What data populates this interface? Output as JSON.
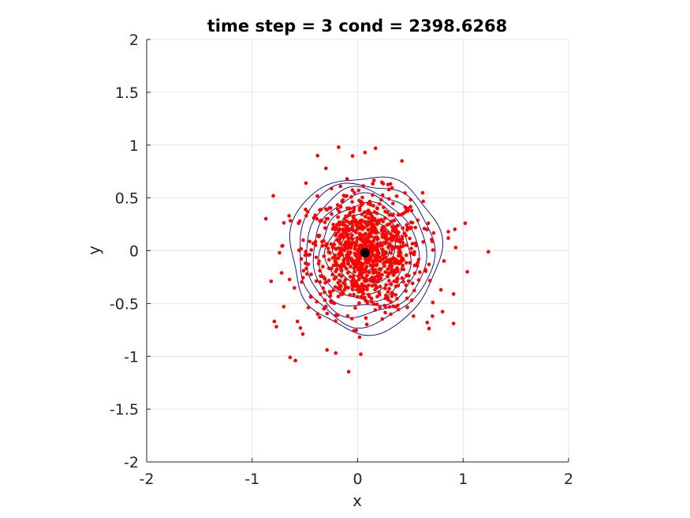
{
  "chart_data": {
    "type": "scatter",
    "title": "time step = 3 cond = 2398.6268",
    "xlabel": "x",
    "ylabel": "y",
    "xlim": [
      -2,
      2
    ],
    "ylim": [
      -2,
      2
    ],
    "grid": true,
    "xticks": [
      -2,
      -1,
      0,
      1,
      2
    ],
    "yticks": [
      -2,
      -1.5,
      -1,
      -0.5,
      0,
      0.5,
      1,
      1.5,
      2
    ],
    "xtick_labels": [
      "-2",
      "-1",
      "0",
      "1",
      "2"
    ],
    "ytick_labels": [
      "-2",
      "-1.5",
      "-1",
      "-0.5",
      "0",
      "0.5",
      "1",
      "1.5",
      "2"
    ],
    "colors": {
      "points": "#ff0000",
      "contour": "#00008b",
      "density_fill": "#f5deb3",
      "center": "#000000",
      "grid": "#e6e6e6",
      "axes": "#262626"
    },
    "mean": {
      "x": 0.07,
      "y": -0.02
    },
    "contour_levels": [
      {
        "rx": 0.71,
        "ry": 0.74
      },
      {
        "rx": 0.64,
        "ry": 0.67
      },
      {
        "rx": 0.57,
        "ry": 0.6
      },
      {
        "rx": 0.5,
        "ry": 0.53
      },
      {
        "rx": 0.43,
        "ry": 0.46
      },
      {
        "rx": 0.36,
        "ry": 0.38
      },
      {
        "rx": 0.29,
        "ry": 0.31
      },
      {
        "rx": 0.22,
        "ry": 0.24
      },
      {
        "rx": 0.15,
        "ry": 0.17
      }
    ],
    "sample_count": 900,
    "outliers": [
      [
        1.24,
        -0.01
      ],
      [
        1.04,
        -0.2
      ],
      [
        1.02,
        0.26
      ],
      [
        0.91,
        -0.69
      ],
      [
        0.93,
        0.03
      ],
      [
        0.86,
        0.18
      ],
      [
        0.91,
        -0.41
      ],
      [
        -0.8,
        0.52
      ],
      [
        -0.82,
        -0.29
      ],
      [
        -0.74,
        -0.02
      ],
      [
        -0.79,
        -0.67
      ],
      [
        -0.77,
        -0.72
      ],
      [
        -0.64,
        -1.01
      ],
      [
        -0.59,
        -1.04
      ],
      [
        -0.29,
        -0.94
      ],
      [
        0.03,
        -0.98
      ],
      [
        -0.38,
        0.9
      ],
      [
        -0.18,
        0.98
      ],
      [
        0.07,
        0.93
      ],
      [
        0.17,
        0.97
      ],
      [
        0.42,
        0.85
      ],
      [
        -0.3,
        0.78
      ],
      [
        -0.49,
        0.64
      ],
      [
        0.71,
        -0.62
      ],
      [
        0.66,
        -0.68
      ],
      [
        0.53,
        -0.62
      ],
      [
        -0.72,
        -0.21
      ],
      [
        -0.7,
        -0.53
      ],
      [
        -0.57,
        -0.67
      ],
      [
        -0.52,
        -0.79
      ],
      [
        -0.36,
        -0.63
      ],
      [
        0.86,
        0.12
      ],
      [
        0.79,
        -0.37
      ],
      [
        -0.65,
        0.33
      ],
      [
        -0.56,
        0.26
      ]
    ]
  }
}
